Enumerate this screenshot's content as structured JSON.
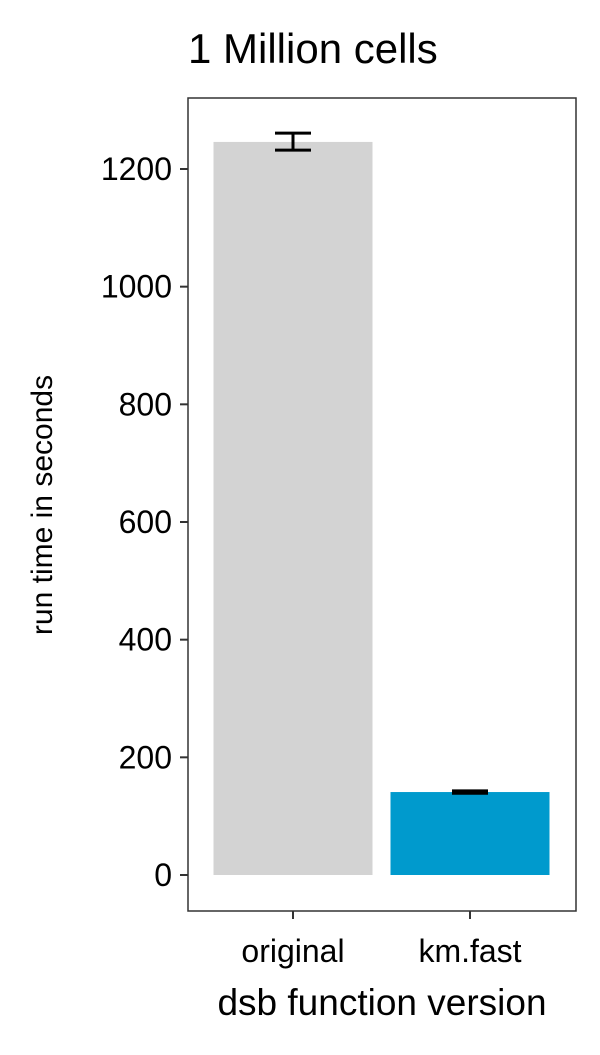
{
  "chart_data": {
    "type": "bar",
    "title": "1 Million cells",
    "xlabel": "dsb function version",
    "ylabel": "run time in seconds",
    "categories": [
      "original",
      "km.fast"
    ],
    "values": [
      1246,
      141
    ],
    "error_low": [
      1232,
      139
    ],
    "error_high": [
      1261,
      143
    ],
    "colors": [
      "#d3d3d3",
      "#009ACD"
    ],
    "yticks": [
      0,
      200,
      400,
      600,
      800,
      1000,
      1200
    ],
    "ylim": [
      -62,
      1308
    ],
    "grid": false,
    "legend": "none"
  }
}
